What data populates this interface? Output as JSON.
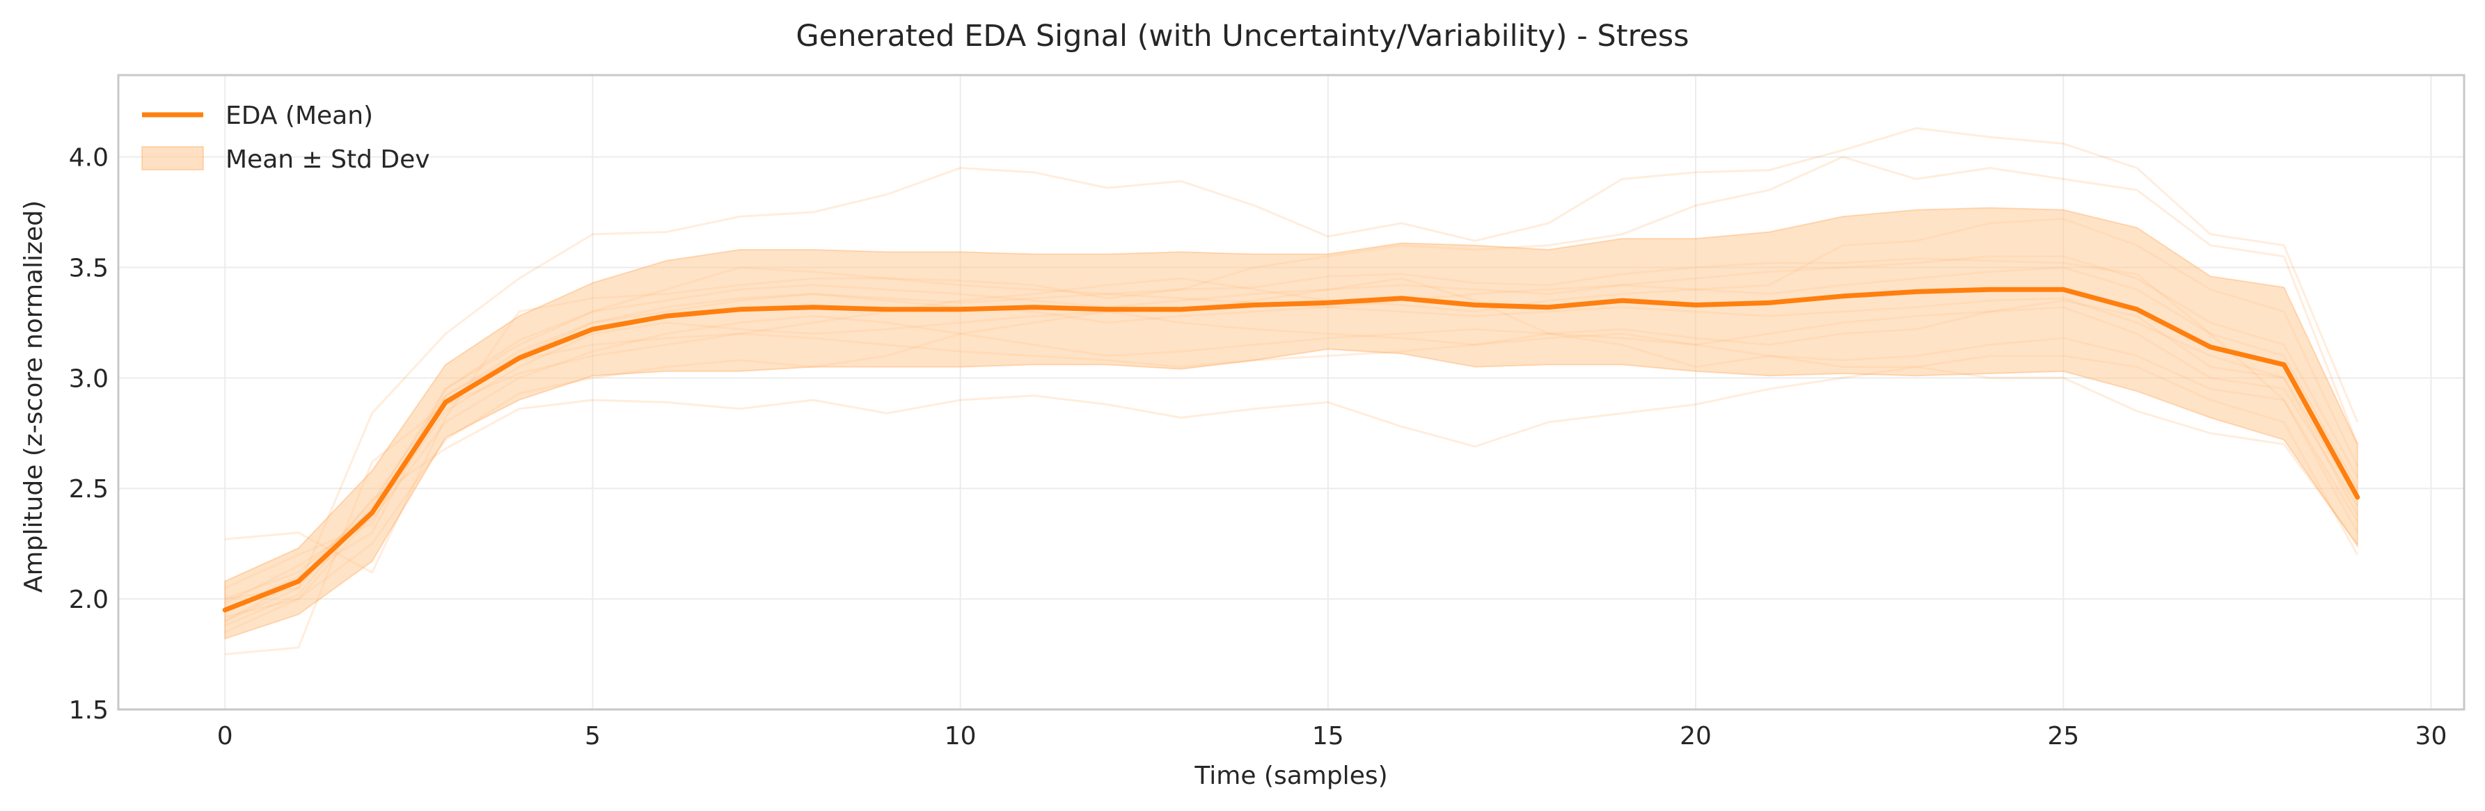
{
  "colors": {
    "mean_line": "#ff7f0e",
    "band_fill": "#ffcc99",
    "sample_line": "#ff7f0e",
    "grid": "#ececec",
    "frame": "#c8c8c8",
    "text": "#262626"
  },
  "chart_data": {
    "type": "line",
    "title": "Generated EDA Signal (with Uncertainty/Variability) - Stress",
    "xlabel": "Time (samples)",
    "ylabel": "Amplitude (z-score normalized)",
    "xlim": [
      -1.45,
      30.45
    ],
    "ylim": [
      1.5,
      4.37
    ],
    "x_ticks": [
      0,
      5,
      10,
      15,
      20,
      25,
      30
    ],
    "y_ticks": [
      1.5,
      2.0,
      2.5,
      3.0,
      3.5,
      4.0
    ],
    "x_tick_labels": [
      "0",
      "5",
      "10",
      "15",
      "20",
      "25",
      "30"
    ],
    "y_tick_labels": [
      "1.5",
      "2.0",
      "2.5",
      "3.0",
      "3.5",
      "4.0"
    ],
    "grid": true,
    "legend_position": "top-left",
    "legend": [
      "EDA (Mean)",
      "Mean ± Std Dev"
    ],
    "x": [
      0,
      1,
      2,
      3,
      4,
      5,
      6,
      7,
      8,
      9,
      10,
      11,
      12,
      13,
      14,
      15,
      16,
      17,
      18,
      19,
      20,
      21,
      22,
      23,
      24,
      25,
      26,
      27,
      28,
      29
    ],
    "series": [
      {
        "name": "EDA (Mean)",
        "values": [
          1.95,
          2.08,
          2.39,
          2.89,
          3.09,
          3.22,
          3.28,
          3.31,
          3.32,
          3.31,
          3.31,
          3.32,
          3.31,
          3.31,
          3.33,
          3.34,
          3.36,
          3.33,
          3.32,
          3.35,
          3.33,
          3.34,
          3.37,
          3.39,
          3.4,
          3.4,
          3.31,
          3.14,
          3.06,
          2.46
        ]
      }
    ],
    "band": {
      "name": "Mean ± Std Dev",
      "lower": [
        1.82,
        1.93,
        2.17,
        2.73,
        2.9,
        3.01,
        3.03,
        3.03,
        3.05,
        3.05,
        3.05,
        3.06,
        3.06,
        3.04,
        3.08,
        3.13,
        3.11,
        3.05,
        3.06,
        3.06,
        3.03,
        3.01,
        3.02,
        3.01,
        3.02,
        3.03,
        2.94,
        2.82,
        2.72,
        2.24
      ],
      "upper": [
        2.08,
        2.23,
        2.58,
        3.06,
        3.28,
        3.43,
        3.53,
        3.58,
        3.58,
        3.57,
        3.57,
        3.56,
        3.56,
        3.57,
        3.56,
        3.56,
        3.61,
        3.6,
        3.58,
        3.63,
        3.63,
        3.66,
        3.73,
        3.76,
        3.77,
        3.76,
        3.68,
        3.46,
        3.41,
        2.7
      ]
    },
    "samples": [
      [
        2.27,
        2.3,
        2.12,
        2.82,
        3.3,
        3.36,
        3.38,
        3.42,
        3.45,
        3.45,
        3.44,
        3.42,
        3.36,
        3.4,
        3.41,
        3.46,
        3.47,
        3.43,
        3.42,
        3.47,
        3.5,
        3.52,
        3.52,
        3.54,
        3.53,
        3.52,
        3.47,
        3.2,
        2.9,
        2.35
      ],
      [
        1.75,
        1.78,
        2.62,
        2.88,
        3.02,
        3.1,
        3.15,
        3.2,
        3.25,
        3.3,
        3.35,
        3.38,
        3.42,
        3.45,
        3.4,
        3.35,
        3.33,
        3.3,
        3.35,
        3.38,
        3.4,
        3.42,
        3.6,
        3.62,
        3.7,
        3.72,
        3.6,
        3.4,
        3.3,
        2.6
      ],
      [
        1.9,
        2.05,
        2.84,
        3.2,
        3.45,
        3.65,
        3.66,
        3.73,
        3.75,
        3.83,
        3.95,
        3.93,
        3.86,
        3.89,
        3.78,
        3.64,
        3.7,
        3.62,
        3.7,
        3.9,
        3.93,
        3.94,
        4.03,
        4.13,
        4.09,
        4.06,
        3.95,
        3.65,
        3.6,
        2.8
      ],
      [
        2.0,
        2.05,
        2.45,
        2.68,
        2.86,
        2.9,
        2.89,
        2.86,
        2.9,
        2.84,
        2.9,
        2.92,
        2.88,
        2.82,
        2.86,
        2.89,
        2.78,
        2.69,
        2.8,
        2.84,
        2.88,
        2.95,
        3.0,
        3.05,
        3.1,
        3.1,
        3.05,
        2.9,
        2.8,
        2.2
      ],
      [
        1.85,
        2.0,
        2.25,
        2.72,
        2.93,
        3.0,
        3.05,
        3.08,
        3.05,
        3.1,
        3.2,
        3.25,
        3.3,
        3.3,
        3.35,
        3.4,
        3.45,
        3.35,
        3.2,
        3.15,
        3.05,
        3.1,
        3.05,
        3.05,
        3.0,
        3.0,
        2.85,
        2.75,
        2.7,
        2.25
      ],
      [
        2.05,
        2.2,
        2.34,
        2.95,
        3.17,
        3.3,
        3.4,
        3.5,
        3.48,
        3.45,
        3.42,
        3.4,
        3.38,
        3.4,
        3.5,
        3.55,
        3.6,
        3.58,
        3.6,
        3.65,
        3.78,
        3.85,
        4.0,
        3.9,
        3.95,
        3.9,
        3.85,
        3.6,
        3.55,
        2.7
      ],
      [
        1.95,
        2.1,
        2.3,
        2.92,
        3.12,
        3.25,
        3.3,
        3.35,
        3.38,
        3.35,
        3.32,
        3.3,
        3.25,
        3.28,
        3.3,
        3.32,
        3.3,
        3.28,
        3.3,
        3.32,
        3.3,
        3.28,
        3.3,
        3.32,
        3.35,
        3.36,
        3.25,
        3.1,
        3.0,
        2.45
      ],
      [
        1.92,
        2.0,
        2.38,
        2.85,
        3.05,
        3.2,
        3.25,
        3.22,
        3.2,
        3.22,
        3.25,
        3.28,
        3.3,
        3.25,
        3.22,
        3.2,
        3.18,
        3.15,
        3.2,
        3.22,
        3.18,
        3.15,
        3.2,
        3.22,
        3.3,
        3.35,
        3.28,
        3.05,
        3.0,
        2.38
      ],
      [
        2.0,
        2.12,
        2.4,
        2.9,
        3.08,
        3.15,
        3.18,
        3.2,
        3.18,
        3.15,
        3.12,
        3.1,
        3.08,
        3.05,
        3.08,
        3.1,
        3.12,
        3.15,
        3.18,
        3.2,
        3.15,
        3.1,
        3.08,
        3.1,
        3.15,
        3.18,
        3.1,
        2.95,
        2.9,
        2.3
      ],
      [
        1.88,
        2.02,
        2.42,
        2.95,
        3.15,
        3.3,
        3.35,
        3.4,
        3.42,
        3.4,
        3.38,
        3.35,
        3.32,
        3.35,
        3.38,
        3.4,
        3.42,
        3.4,
        3.38,
        3.42,
        3.4,
        3.38,
        3.42,
        3.45,
        3.48,
        3.5,
        3.4,
        3.2,
        3.1,
        2.5
      ],
      [
        1.98,
        2.15,
        2.36,
        2.8,
        3.0,
        3.12,
        3.2,
        3.25,
        3.28,
        3.25,
        3.2,
        3.15,
        3.1,
        3.12,
        3.15,
        3.18,
        3.2,
        3.22,
        3.2,
        3.18,
        3.15,
        3.2,
        3.25,
        3.28,
        3.3,
        3.32,
        3.2,
        3.0,
        2.95,
        2.42
      ],
      [
        1.9,
        2.08,
        2.44,
        2.92,
        3.1,
        3.25,
        3.32,
        3.36,
        3.38,
        3.36,
        3.34,
        3.36,
        3.38,
        3.36,
        3.34,
        3.32,
        3.35,
        3.38,
        3.4,
        3.42,
        3.45,
        3.48,
        3.5,
        3.52,
        3.55,
        3.55,
        3.45,
        3.25,
        3.15,
        2.55
      ]
    ]
  }
}
